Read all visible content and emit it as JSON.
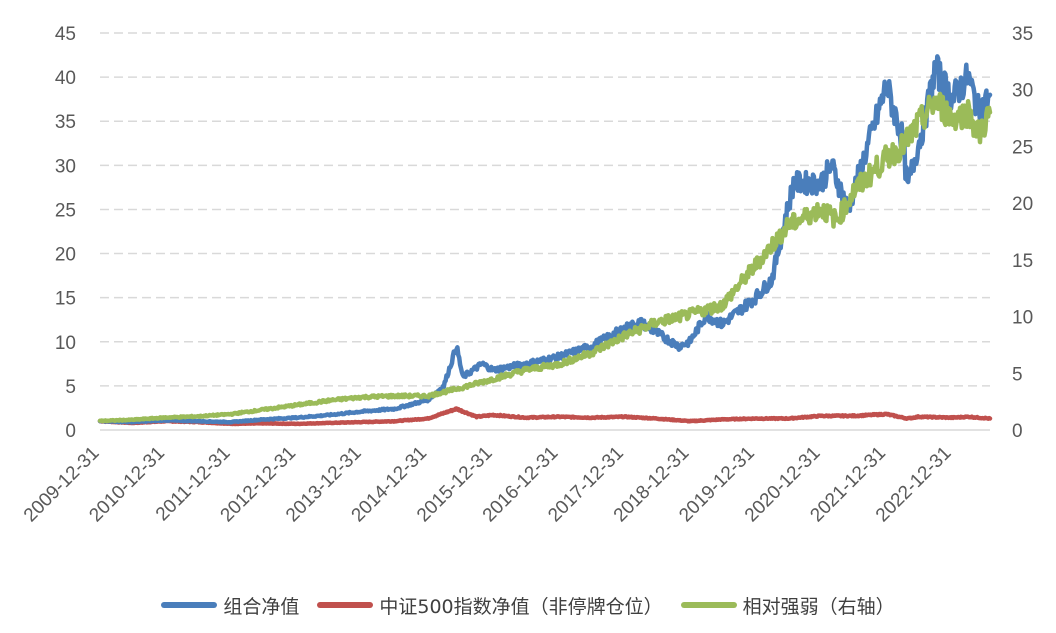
{
  "chart_data": {
    "type": "line",
    "title": "",
    "x_ticks": [
      "2009-12-31",
      "2010-12-31",
      "2011-12-31",
      "2012-12-31",
      "2013-12-31",
      "2014-12-31",
      "2015-12-31",
      "2016-12-31",
      "2017-12-31",
      "2018-12-31",
      "2019-12-31",
      "2020-12-31",
      "2021-12-31",
      "2022-12-31"
    ],
    "x_range": [
      "2009-12-31",
      "2023-07-31"
    ],
    "y_left": {
      "min": 0,
      "max": 45,
      "step": 5,
      "ticks": [
        "0",
        "5",
        "10",
        "15",
        "20",
        "25",
        "30",
        "35",
        "40",
        "45"
      ]
    },
    "y_right": {
      "min": 0,
      "max": 35,
      "step": 5,
      "ticks": [
        "0",
        "5",
        "10",
        "15",
        "20",
        "25",
        "30",
        "35"
      ]
    },
    "grid": "horizontal dashed",
    "legend_position": "bottom",
    "series": [
      {
        "name": "组合净值",
        "axis": "left",
        "color": "#4a7ebb",
        "points": [
          [
            "2009-12-31",
            1.0
          ],
          [
            "2010-06-30",
            0.9
          ],
          [
            "2010-12-31",
            1.1
          ],
          [
            "2011-06-30",
            1.0
          ],
          [
            "2011-12-31",
            0.9
          ],
          [
            "2012-06-30",
            1.2
          ],
          [
            "2012-12-31",
            1.4
          ],
          [
            "2013-06-30",
            1.7
          ],
          [
            "2013-12-31",
            2.1
          ],
          [
            "2014-06-30",
            2.4
          ],
          [
            "2014-12-31",
            3.4
          ],
          [
            "2015-03-31",
            5.0
          ],
          [
            "2015-06-10",
            9.5
          ],
          [
            "2015-07-15",
            6.0
          ],
          [
            "2015-10-31",
            7.5
          ],
          [
            "2015-12-31",
            6.8
          ],
          [
            "2016-06-30",
            7.5
          ],
          [
            "2016-12-31",
            8.3
          ],
          [
            "2017-06-30",
            9.5
          ],
          [
            "2017-12-31",
            11.5
          ],
          [
            "2018-03-31",
            12.2
          ],
          [
            "2018-06-30",
            11.0
          ],
          [
            "2018-10-31",
            9.5
          ],
          [
            "2018-12-31",
            10.0
          ],
          [
            "2019-03-31",
            13.0
          ],
          [
            "2019-06-30",
            12.0
          ],
          [
            "2019-12-31",
            15.0
          ],
          [
            "2020-03-31",
            17.0
          ],
          [
            "2020-07-31",
            28.0
          ],
          [
            "2020-12-31",
            28.0
          ],
          [
            "2021-02-28",
            30.0
          ],
          [
            "2021-05-31",
            25.0
          ],
          [
            "2021-09-30",
            33.0
          ],
          [
            "2021-12-31",
            39.0
          ],
          [
            "2022-03-31",
            33.0
          ],
          [
            "2022-04-26",
            27.5
          ],
          [
            "2022-07-31",
            35.0
          ],
          [
            "2022-09-30",
            41.0
          ],
          [
            "2022-12-31",
            37.5
          ],
          [
            "2023-03-31",
            40.0
          ],
          [
            "2023-05-31",
            36.0
          ],
          [
            "2023-07-31",
            38.0
          ]
        ]
      },
      {
        "name": "中证500指数净值（非停牌仓位）",
        "axis": "left",
        "color": "#c0504d",
        "points": [
          [
            "2009-12-31",
            1.0
          ],
          [
            "2010-06-30",
            0.8
          ],
          [
            "2010-12-31",
            1.0
          ],
          [
            "2011-06-30",
            0.9
          ],
          [
            "2011-12-31",
            0.7
          ],
          [
            "2012-06-30",
            0.75
          ],
          [
            "2012-12-31",
            0.7
          ],
          [
            "2013-06-30",
            0.8
          ],
          [
            "2013-12-31",
            0.9
          ],
          [
            "2014-06-30",
            1.0
          ],
          [
            "2014-12-31",
            1.3
          ],
          [
            "2015-06-10",
            2.4
          ],
          [
            "2015-09-30",
            1.5
          ],
          [
            "2015-12-31",
            1.7
          ],
          [
            "2016-06-30",
            1.4
          ],
          [
            "2016-12-31",
            1.5
          ],
          [
            "2017-06-30",
            1.4
          ],
          [
            "2017-12-31",
            1.5
          ],
          [
            "2018-06-30",
            1.3
          ],
          [
            "2018-12-31",
            1.0
          ],
          [
            "2019-06-30",
            1.2
          ],
          [
            "2019-12-31",
            1.3
          ],
          [
            "2020-06-30",
            1.3
          ],
          [
            "2020-12-31",
            1.6
          ],
          [
            "2021-06-30",
            1.6
          ],
          [
            "2021-12-31",
            1.8
          ],
          [
            "2022-04-26",
            1.3
          ],
          [
            "2022-06-30",
            1.5
          ],
          [
            "2022-12-31",
            1.4
          ],
          [
            "2023-03-31",
            1.5
          ],
          [
            "2023-07-31",
            1.3
          ]
        ]
      },
      {
        "name": "相对强弱（右轴）",
        "axis": "right",
        "color": "#9bbb59",
        "points": [
          [
            "2009-12-31",
            0.8
          ],
          [
            "2010-06-30",
            0.9
          ],
          [
            "2010-12-31",
            1.1
          ],
          [
            "2011-06-30",
            1.2
          ],
          [
            "2011-12-31",
            1.4
          ],
          [
            "2012-06-30",
            1.8
          ],
          [
            "2012-12-31",
            2.2
          ],
          [
            "2013-06-30",
            2.6
          ],
          [
            "2013-12-31",
            2.9
          ],
          [
            "2014-06-30",
            3.0
          ],
          [
            "2014-12-31",
            3.0
          ],
          [
            "2015-06-30",
            3.7
          ],
          [
            "2015-12-31",
            4.5
          ],
          [
            "2016-06-30",
            5.3
          ],
          [
            "2016-12-31",
            5.8
          ],
          [
            "2017-06-30",
            6.8
          ],
          [
            "2017-12-31",
            8.3
          ],
          [
            "2018-06-30",
            9.5
          ],
          [
            "2018-12-31",
            10.2
          ],
          [
            "2019-06-30",
            11.0
          ],
          [
            "2019-12-31",
            14.5
          ],
          [
            "2020-06-30",
            18.0
          ],
          [
            "2020-12-31",
            19.5
          ],
          [
            "2021-03-31",
            18.5
          ],
          [
            "2021-06-30",
            21.0
          ],
          [
            "2021-12-31",
            24.0
          ],
          [
            "2022-03-31",
            25.0
          ],
          [
            "2022-06-30",
            27.0
          ],
          [
            "2022-09-30",
            29.0
          ],
          [
            "2022-12-31",
            27.5
          ],
          [
            "2023-03-31",
            28.0
          ],
          [
            "2023-05-31",
            26.0
          ],
          [
            "2023-07-31",
            28.0
          ]
        ]
      }
    ]
  }
}
